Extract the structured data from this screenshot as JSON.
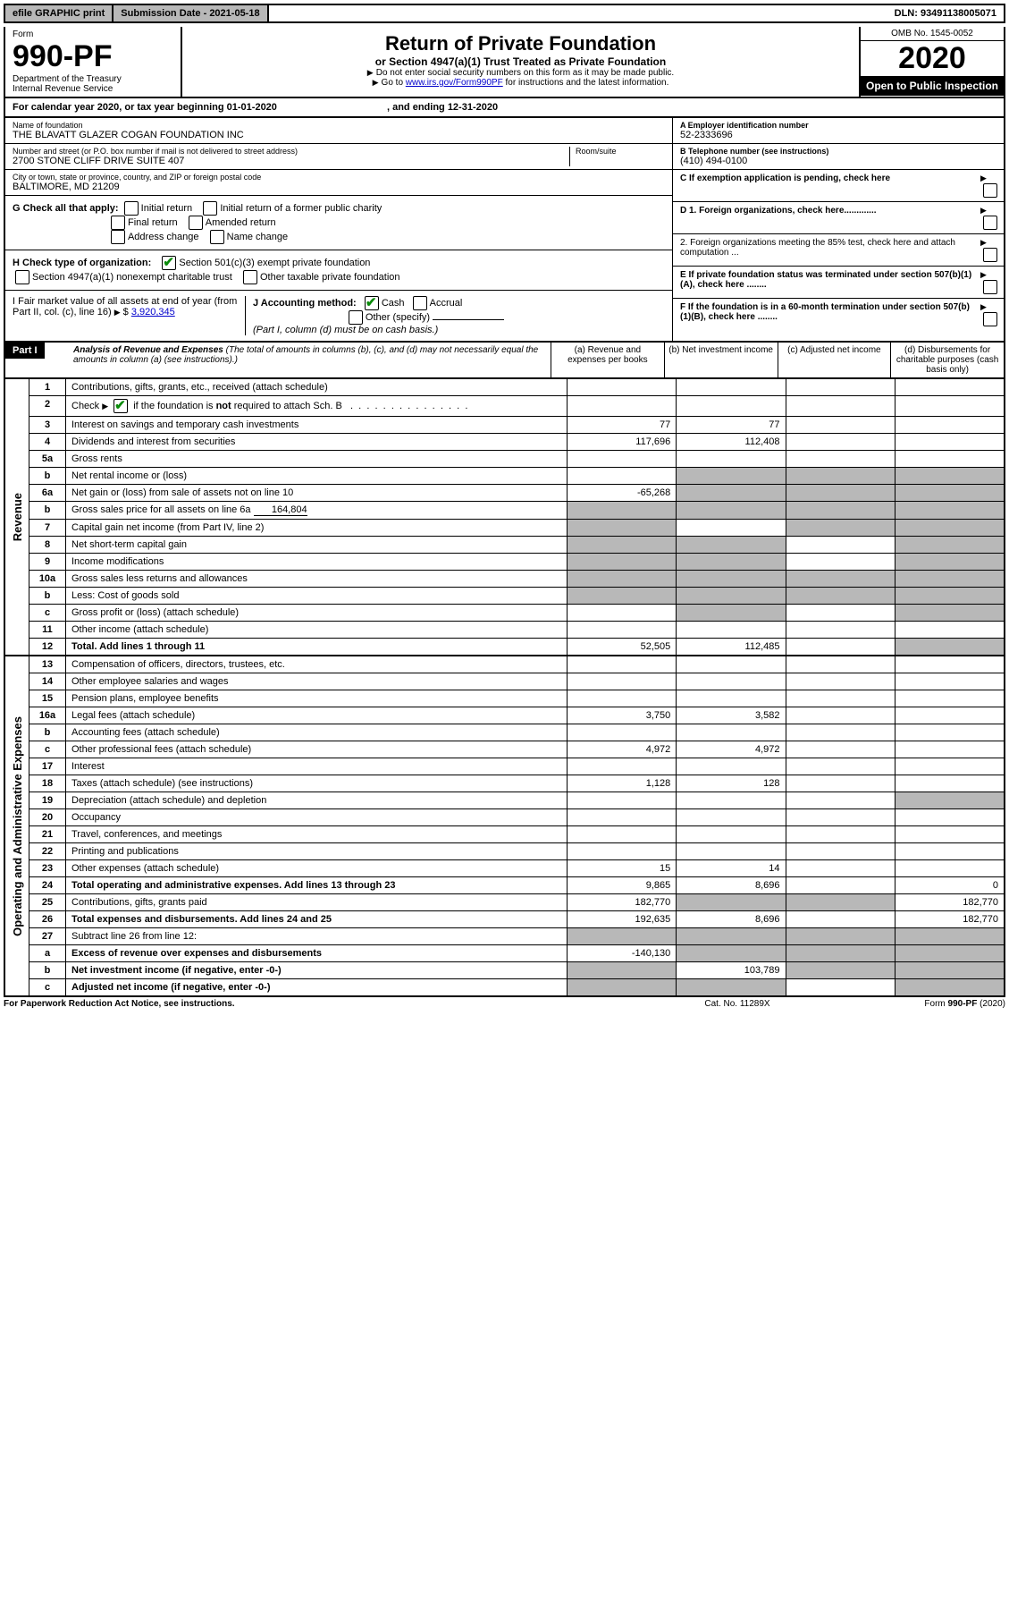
{
  "topbar": {
    "efile": "efile GRAPHIC print",
    "sub": "Submission Date - 2021-05-18",
    "dln": "DLN: 93491138005071"
  },
  "head": {
    "form": "Form",
    "num": "990-PF",
    "dept": "Department of the Treasury",
    "irs": "Internal Revenue Service",
    "title": "Return of Private Foundation",
    "sub": "or Section 4947(a)(1) Trust Treated as Private Foundation",
    "note1": "Do not enter social security numbers on this form as it may be made public.",
    "note2": "Go to ",
    "link": "www.irs.gov/Form990PF",
    "note3": " for instructions and the latest information.",
    "omb": "OMB No. 1545-0052",
    "year": "2020",
    "open": "Open to Public Inspection"
  },
  "cal": {
    "txt": "For calendar year 2020, or tax year beginning 01-01-2020",
    "end": ", and ending 12-31-2020"
  },
  "entity": {
    "name_lbl": "Name of foundation",
    "name": "THE BLAVATT GLAZER COGAN FOUNDATION INC",
    "addr_lbl": "Number and street (or P.O. box number if mail is not delivered to street address)",
    "room_lbl": "Room/suite",
    "addr": "2700 STONE CLIFF DRIVE SUITE 407",
    "city_lbl": "City or town, state or province, country, and ZIP or foreign postal code",
    "city": "BALTIMORE, MD  21209",
    "ein_lbl": "A Employer identification number",
    "ein": "52-2333696",
    "tel_lbl": "B Telephone number (see instructions)",
    "tel": "(410) 494-0100",
    "c": "C  If exemption application is pending, check here",
    "d1": "D 1. Foreign organizations, check here.............",
    "d2": "2. Foreign organizations meeting the 85% test, check here and attach computation ...",
    "e": "E  If private foundation status was terminated under section 507(b)(1)(A), check here ........",
    "f": "F  If the foundation is in a 60-month termination under section 507(b)(1)(B), check here ........"
  },
  "g": {
    "lbl": "G Check all that apply:",
    "initial": "Initial return",
    "initialformer": "Initial return of a former public charity",
    "final": "Final return",
    "amended": "Amended return",
    "addr": "Address change",
    "name": "Name change"
  },
  "h": {
    "lbl": "H Check type of organization:",
    "501": "Section 501(c)(3) exempt private foundation",
    "4947": "Section 4947(a)(1) nonexempt charitable trust",
    "other": "Other taxable private foundation"
  },
  "i": {
    "lbl": "I Fair market value of all assets at end of year (from Part II, col. (c), line 16)",
    "val": "3,920,345"
  },
  "j": {
    "lbl": "J Accounting method:",
    "cash": "Cash",
    "accrual": "Accrual",
    "other": "Other (specify)",
    "note": "(Part I, column (d) must be on cash basis.)"
  },
  "part1": {
    "label": "Part I",
    "title": "Analysis of Revenue and Expenses",
    "note": "(The total of amounts in columns (b), (c), and (d) may not necessarily equal the amounts in column (a) (see instructions).)",
    "cols": {
      "a": "(a)   Revenue and expenses per books",
      "b": "(b)   Net investment income",
      "c": "(c)   Adjusted net income",
      "d": "(d)   Disbursements for charitable purposes (cash basis only)"
    }
  },
  "rev_label": "Revenue",
  "exp_label": "Operating and Administrative Expenses",
  "rows": [
    {
      "n": "1",
      "d": "Contributions, gifts, grants, etc., received (attach schedule)"
    },
    {
      "n": "2",
      "d": "Check  if the foundation is not required to attach Sch. B",
      "check": true
    },
    {
      "n": "3",
      "d": "Interest on savings and temporary cash investments",
      "a": "77",
      "b": "77"
    },
    {
      "n": "4",
      "d": "Dividends and interest from securities",
      "a": "117,696",
      "b": "112,408"
    },
    {
      "n": "5a",
      "d": "Gross rents"
    },
    {
      "n": "b",
      "d": "Net rental income or (loss)",
      "shade": [
        "b",
        "c",
        "d"
      ]
    },
    {
      "n": "6a",
      "d": "Net gain or (loss) from sale of assets not on line 10",
      "a": "-65,268",
      "shade": [
        "b",
        "c",
        "d"
      ]
    },
    {
      "n": "b",
      "d": "Gross sales price for all assets on line 6a",
      "inline": "164,804",
      "shade": [
        "a",
        "b",
        "c",
        "d"
      ]
    },
    {
      "n": "7",
      "d": "Capital gain net income (from Part IV, line 2)",
      "shade": [
        "a",
        "c",
        "d"
      ]
    },
    {
      "n": "8",
      "d": "Net short-term capital gain",
      "shade": [
        "a",
        "b",
        "d"
      ]
    },
    {
      "n": "9",
      "d": "Income modifications",
      "shade": [
        "a",
        "b",
        "d"
      ]
    },
    {
      "n": "10a",
      "d": "Gross sales less returns and allowances",
      "shade": [
        "a",
        "b",
        "c",
        "d"
      ]
    },
    {
      "n": "b",
      "d": "Less: Cost of goods sold",
      "shade": [
        "a",
        "b",
        "c",
        "d"
      ]
    },
    {
      "n": "c",
      "d": "Gross profit or (loss) (attach schedule)",
      "shade": [
        "b",
        "d"
      ]
    },
    {
      "n": "11",
      "d": "Other income (attach schedule)"
    },
    {
      "n": "12",
      "d": "Total. Add lines 1 through 11",
      "bold": true,
      "a": "52,505",
      "b": "112,485",
      "shade": [
        "d"
      ]
    }
  ],
  "erows": [
    {
      "n": "13",
      "d": "Compensation of officers, directors, trustees, etc."
    },
    {
      "n": "14",
      "d": "Other employee salaries and wages"
    },
    {
      "n": "15",
      "d": "Pension plans, employee benefits"
    },
    {
      "n": "16a",
      "d": "Legal fees (attach schedule)",
      "a": "3,750",
      "b": "3,582"
    },
    {
      "n": "b",
      "d": "Accounting fees (attach schedule)"
    },
    {
      "n": "c",
      "d": "Other professional fees (attach schedule)",
      "a": "4,972",
      "b": "4,972"
    },
    {
      "n": "17",
      "d": "Interest"
    },
    {
      "n": "18",
      "d": "Taxes (attach schedule) (see instructions)",
      "a": "1,128",
      "b": "128"
    },
    {
      "n": "19",
      "d": "Depreciation (attach schedule) and depletion",
      "shade": [
        "d"
      ]
    },
    {
      "n": "20",
      "d": "Occupancy"
    },
    {
      "n": "21",
      "d": "Travel, conferences, and meetings"
    },
    {
      "n": "22",
      "d": "Printing and publications"
    },
    {
      "n": "23",
      "d": "Other expenses (attach schedule)",
      "a": "15",
      "b": "14"
    },
    {
      "n": "24",
      "d": "Total operating and administrative expenses. Add lines 13 through 23",
      "bold": true,
      "a": "9,865",
      "b": "8,696",
      "dv": "0"
    },
    {
      "n": "25",
      "d": "Contributions, gifts, grants paid",
      "a": "182,770",
      "dv": "182,770",
      "shade": [
        "b",
        "c"
      ]
    },
    {
      "n": "26",
      "d": "Total expenses and disbursements. Add lines 24 and 25",
      "bold": true,
      "a": "192,635",
      "b": "8,696",
      "dv": "182,770"
    },
    {
      "n": "27",
      "d": "Subtract line 26 from line 12:",
      "shade": [
        "a",
        "b",
        "c",
        "d"
      ]
    },
    {
      "n": "a",
      "d": "Excess of revenue over expenses and disbursements",
      "bold": true,
      "a": "-140,130",
      "shade": [
        "b",
        "c",
        "d"
      ]
    },
    {
      "n": "b",
      "d": "Net investment income (if negative, enter -0-)",
      "bold": true,
      "b": "103,789",
      "shade": [
        "a",
        "c",
        "d"
      ]
    },
    {
      "n": "c",
      "d": "Adjusted net income (if negative, enter -0-)",
      "bold": true,
      "shade": [
        "a",
        "b",
        "d"
      ]
    }
  ],
  "footer": {
    "l": "For Paperwork Reduction Act Notice, see instructions.",
    "m": "Cat. No. 11289X",
    "r": "Form 990-PF (2020)"
  }
}
